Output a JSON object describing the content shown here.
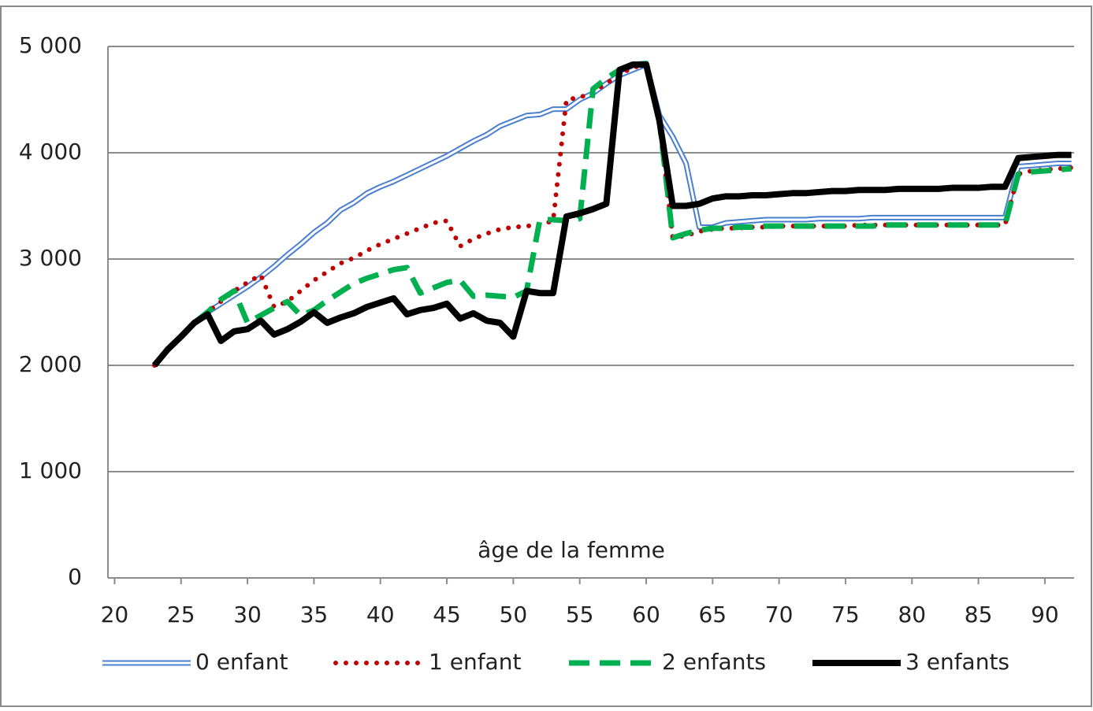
{
  "chart_data": {
    "type": "line",
    "x_label": "âge de la femme",
    "x": [
      23,
      24,
      25,
      26,
      27,
      28,
      29,
      30,
      31,
      32,
      33,
      34,
      35,
      36,
      37,
      38,
      39,
      40,
      41,
      42,
      43,
      44,
      45,
      46,
      47,
      48,
      49,
      50,
      51,
      52,
      53,
      54,
      55,
      56,
      57,
      58,
      59,
      60,
      61,
      62,
      63,
      64,
      65,
      66,
      67,
      68,
      69,
      70,
      71,
      72,
      73,
      74,
      75,
      76,
      77,
      78,
      79,
      80,
      81,
      82,
      83,
      84,
      85,
      86,
      87,
      88,
      89,
      90,
      91,
      92
    ],
    "series": [
      {
        "name": "0 enfant",
        "color": "#4a7fd0",
        "line_style": "double",
        "values": [
          2000,
          2150,
          2270,
          2400,
          2500,
          2580,
          2660,
          2740,
          2830,
          2930,
          3040,
          3140,
          3250,
          3340,
          3460,
          3530,
          3620,
          3680,
          3730,
          3790,
          3850,
          3910,
          3970,
          4040,
          4110,
          4170,
          4250,
          4300,
          4350,
          4360,
          4410,
          4410,
          4500,
          4560,
          4650,
          4730,
          4780,
          4830,
          4350,
          4150,
          3900,
          3300,
          3300,
          3340,
          3350,
          3360,
          3370,
          3370,
          3370,
          3370,
          3380,
          3380,
          3380,
          3380,
          3390,
          3390,
          3390,
          3390,
          3390,
          3390,
          3390,
          3390,
          3390,
          3390,
          3390,
          3870,
          3880,
          3890,
          3900,
          3900
        ]
      },
      {
        "name": "1 enfant",
        "color": "#c00000",
        "line_style": "dotted",
        "values": [
          2000,
          2150,
          2270,
          2400,
          2500,
          2600,
          2700,
          2780,
          2850,
          2550,
          2600,
          2700,
          2800,
          2880,
          2960,
          3010,
          3080,
          3140,
          3190,
          3240,
          3290,
          3340,
          3360,
          3120,
          3190,
          3240,
          3280,
          3300,
          3310,
          3320,
          3360,
          4500,
          4520,
          4570,
          4650,
          4740,
          4800,
          4830,
          4300,
          3200,
          3220,
          3260,
          3280,
          3290,
          3290,
          3300,
          3300,
          3310,
          3310,
          3310,
          3310,
          3310,
          3310,
          3320,
          3320,
          3320,
          3320,
          3320,
          3320,
          3320,
          3320,
          3320,
          3320,
          3320,
          3320,
          3800,
          3830,
          3840,
          3850,
          3860
        ]
      },
      {
        "name": "2 enfants",
        "color": "#00b050",
        "line_style": "dashed",
        "values": [
          2000,
          2150,
          2270,
          2400,
          2500,
          2620,
          2700,
          2400,
          2470,
          2540,
          2600,
          2470,
          2520,
          2610,
          2690,
          2770,
          2820,
          2860,
          2900,
          2920,
          2680,
          2730,
          2780,
          2800,
          2650,
          2660,
          2650,
          2640,
          2700,
          3370,
          3370,
          3360,
          3380,
          4600,
          4700,
          4780,
          4830,
          4840,
          4300,
          3200,
          3240,
          3270,
          3290,
          3290,
          3300,
          3300,
          3310,
          3310,
          3310,
          3310,
          3310,
          3310,
          3310,
          3310,
          3310,
          3320,
          3320,
          3320,
          3320,
          3320,
          3320,
          3320,
          3320,
          3320,
          3320,
          3800,
          3820,
          3830,
          3840,
          3850
        ]
      },
      {
        "name": "3 enfants",
        "color": "#000000",
        "line_style": "thick",
        "values": [
          2000,
          2150,
          2270,
          2400,
          2480,
          2230,
          2320,
          2340,
          2420,
          2290,
          2340,
          2410,
          2500,
          2400,
          2450,
          2490,
          2550,
          2590,
          2630,
          2480,
          2520,
          2540,
          2580,
          2440,
          2490,
          2420,
          2400,
          2270,
          2700,
          2680,
          2680,
          3400,
          3430,
          3470,
          3520,
          4780,
          4830,
          4830,
          4300,
          3500,
          3500,
          3520,
          3570,
          3590,
          3590,
          3600,
          3600,
          3610,
          3620,
          3620,
          3630,
          3640,
          3640,
          3650,
          3650,
          3650,
          3660,
          3660,
          3660,
          3660,
          3670,
          3670,
          3670,
          3680,
          3680,
          3950,
          3960,
          3970,
          3980,
          3980
        ]
      }
    ],
    "xlim": [
      19.5,
      92.2
    ],
    "xticks": [
      20,
      25,
      30,
      35,
      40,
      45,
      50,
      55,
      60,
      65,
      70,
      75,
      80,
      85,
      90
    ],
    "ylim": [
      0,
      5000
    ],
    "yticks": [
      0,
      {
        "value": 1000,
        "label": "1 000"
      },
      {
        "value": 2000,
        "label": "2 000"
      },
      {
        "value": 3000,
        "label": "3 000"
      },
      {
        "value": 4000,
        "label": "4 000"
      },
      {
        "value": 5000,
        "label": "5 000"
      }
    ],
    "grid": true,
    "legend": "bottom"
  }
}
